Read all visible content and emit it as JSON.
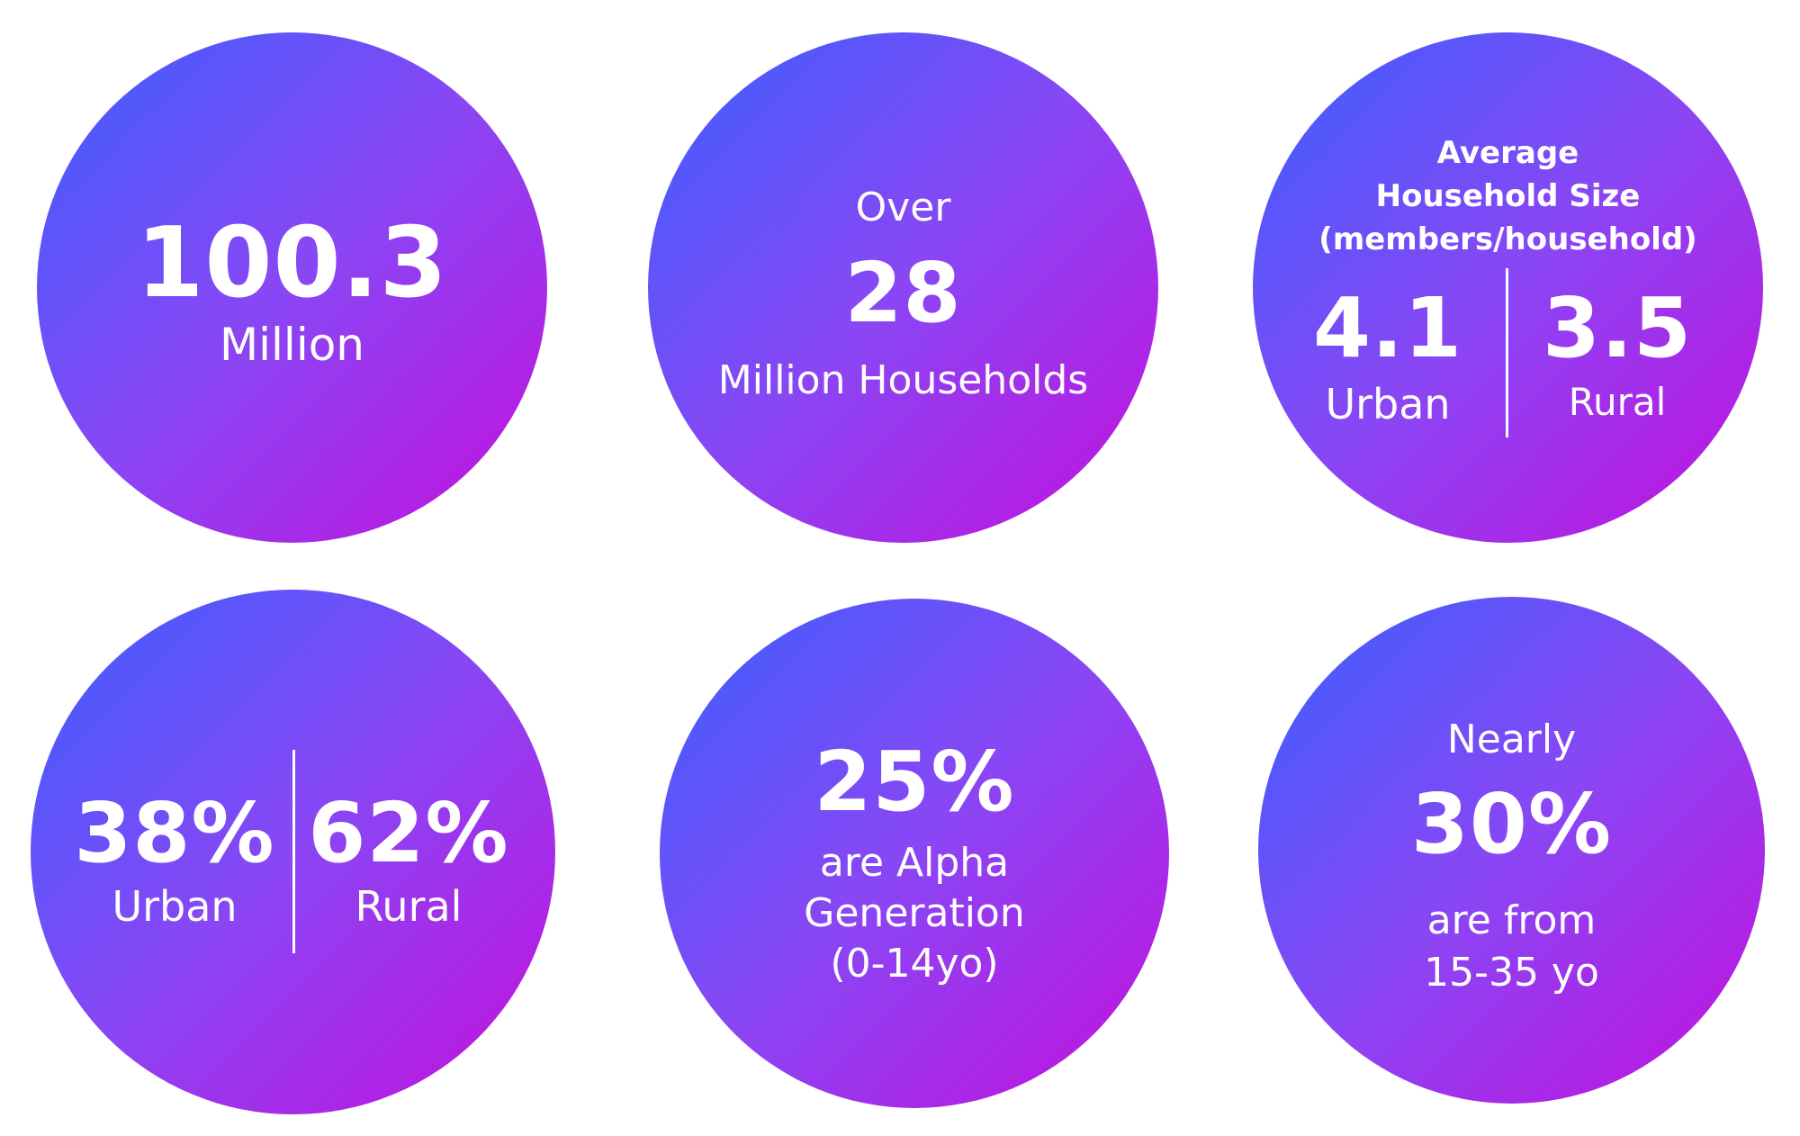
{
  "stats": {
    "population": {
      "value": "100.3",
      "unit": "Million"
    },
    "households": {
      "prefix": "Over",
      "value": "28",
      "unit": "Million Households"
    },
    "household_size": {
      "title_line1": "Average",
      "title_line2": "Household Size",
      "title_line3": "(members/household)",
      "urban_value": "4.1",
      "urban_label": "Urban",
      "rural_value": "3.5",
      "rural_label": "Rural"
    },
    "urban_rural": {
      "urban_value": "38%",
      "urban_label": "Urban",
      "rural_value": "62%",
      "rural_label": "Rural"
    },
    "alpha": {
      "value": "25%",
      "line1": "are Alpha",
      "line2": "Generation",
      "line3": "(0-14yo)"
    },
    "youth": {
      "prefix": "Nearly",
      "value": "30%",
      "line1": "are from",
      "line2": "15-35 yo"
    }
  },
  "colors": {
    "gradient_start": "#3a60ff",
    "gradient_mid": "#8a46f4",
    "gradient_end": "#c40fdd",
    "text": "#ffffff",
    "background": "#ffffff"
  }
}
